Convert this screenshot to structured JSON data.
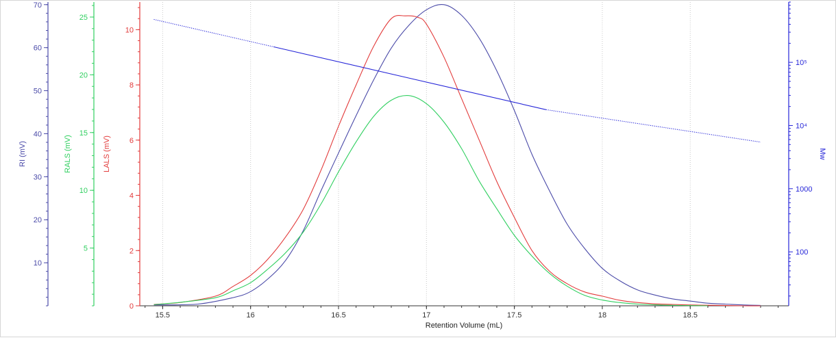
{
  "chart_data": {
    "type": "line",
    "xlabel": "Retention Volume (mL)",
    "x_ticks": [
      "15.5",
      "16",
      "16.5",
      "17",
      "17.5",
      "18",
      "18.5"
    ],
    "xlim": [
      15.37,
      19.06
    ],
    "grid": "vertical dotted",
    "axes": {
      "ri": {
        "label": "RI (mV)",
        "color": "#4a4aa8",
        "ticks": [
          "10",
          "20",
          "30",
          "40",
          "50",
          "60",
          "70"
        ],
        "ylim": [
          0,
          70.6
        ]
      },
      "rals": {
        "label": "RALS (mV)",
        "color": "#2fcf5f",
        "ticks": [
          "5",
          "10",
          "15",
          "20",
          "25"
        ],
        "ylim": [
          0,
          26.3
        ]
      },
      "lals": {
        "label": "LALS (mV)",
        "color": "#e23a3a",
        "ticks": [
          "0",
          "2",
          "4",
          "6",
          "8",
          "10"
        ],
        "ylim": [
          0,
          11.0
        ]
      },
      "mw": {
        "label": "Mw",
        "color": "#2424d8",
        "scale": "log",
        "ticks": [
          {
            "value": 100,
            "label": "100"
          },
          {
            "value": 1000,
            "label": "1000"
          },
          {
            "value": 10000,
            "label": "10⁴"
          },
          {
            "value": 100000,
            "label": "10⁵"
          }
        ],
        "ylim": [
          14,
          900000
        ]
      }
    },
    "series": [
      {
        "axis": "ri",
        "color": "#4a4aa8",
        "x": [
          15.45,
          15.7,
          15.9,
          16.0,
          16.1,
          16.2,
          16.3,
          16.4,
          16.5,
          16.6,
          16.7,
          16.8,
          16.9,
          17.0,
          17.1,
          17.2,
          17.3,
          17.4,
          17.5,
          17.6,
          17.7,
          17.8,
          17.9,
          18.0,
          18.1,
          18.2,
          18.3,
          18.4,
          18.5,
          18.6,
          18.7,
          18.8,
          18.9
        ],
        "y": [
          0.2,
          0.4,
          1.9,
          3.3,
          6.3,
          10.6,
          17.5,
          26.7,
          35.5,
          44.2,
          52.5,
          59.9,
          65.2,
          68.8,
          70.0,
          67.5,
          62.2,
          54.6,
          45.4,
          35.2,
          26.7,
          19.0,
          13.3,
          8.7,
          5.8,
          3.7,
          2.5,
          1.6,
          1.1,
          0.6,
          0.4,
          0.2,
          0.1
        ]
      },
      {
        "axis": "lals",
        "color": "#e23a3a",
        "x": [
          15.45,
          15.6,
          15.8,
          15.9,
          16.0,
          16.1,
          16.2,
          16.3,
          16.4,
          16.5,
          16.6,
          16.7,
          16.8,
          16.88,
          16.95,
          17.0,
          17.1,
          17.2,
          17.3,
          17.4,
          17.5,
          17.6,
          17.7,
          17.8,
          17.9,
          18.0,
          18.1,
          18.2,
          18.3,
          18.4,
          18.5,
          18.6,
          18.7,
          18.8,
          18.9
        ],
        "y": [
          0.05,
          0.12,
          0.35,
          0.7,
          1.1,
          1.7,
          2.5,
          3.5,
          4.9,
          6.5,
          8.0,
          9.4,
          10.4,
          10.5,
          10.45,
          10.2,
          9.0,
          7.5,
          6.0,
          4.5,
          3.2,
          2.0,
          1.25,
          0.8,
          0.5,
          0.35,
          0.2,
          0.12,
          0.07,
          0.05,
          0.03,
          0.02,
          0.01,
          0.0,
          0.0
        ]
      },
      {
        "axis": "rals",
        "color": "#2fcf5f",
        "x": [
          15.45,
          15.6,
          15.8,
          15.9,
          16.0,
          16.1,
          16.2,
          16.3,
          16.4,
          16.5,
          16.6,
          16.7,
          16.8,
          16.9,
          17.0,
          17.1,
          17.2,
          17.3,
          17.4,
          17.5,
          17.6,
          17.7,
          17.8,
          17.9,
          18.0,
          18.1,
          18.2,
          18.3,
          18.4,
          18.5,
          18.6
        ],
        "y": [
          0.1,
          0.3,
          0.7,
          1.3,
          2.0,
          3.2,
          4.6,
          6.4,
          8.8,
          11.6,
          14.2,
          16.4,
          17.8,
          18.2,
          17.5,
          15.9,
          13.6,
          10.8,
          8.4,
          6.1,
          4.3,
          2.8,
          1.7,
          0.9,
          0.5,
          0.28,
          0.15,
          0.08,
          0.04,
          0.02,
          0.0
        ]
      },
      {
        "axis": "mw",
        "color": "#2424d8",
        "style": "solid",
        "x": [
          16.13,
          17.68
        ],
        "y": [
          176000,
          17800
        ]
      },
      {
        "axis": "mw",
        "color": "#2424d8",
        "style": "dotted",
        "x": [
          15.45,
          16.13
        ],
        "y": [
          478000,
          176000
        ]
      },
      {
        "axis": "mw",
        "color": "#2424d8",
        "style": "dotted",
        "x": [
          17.68,
          18.9
        ],
        "y": [
          17800,
          5460
        ]
      }
    ]
  }
}
